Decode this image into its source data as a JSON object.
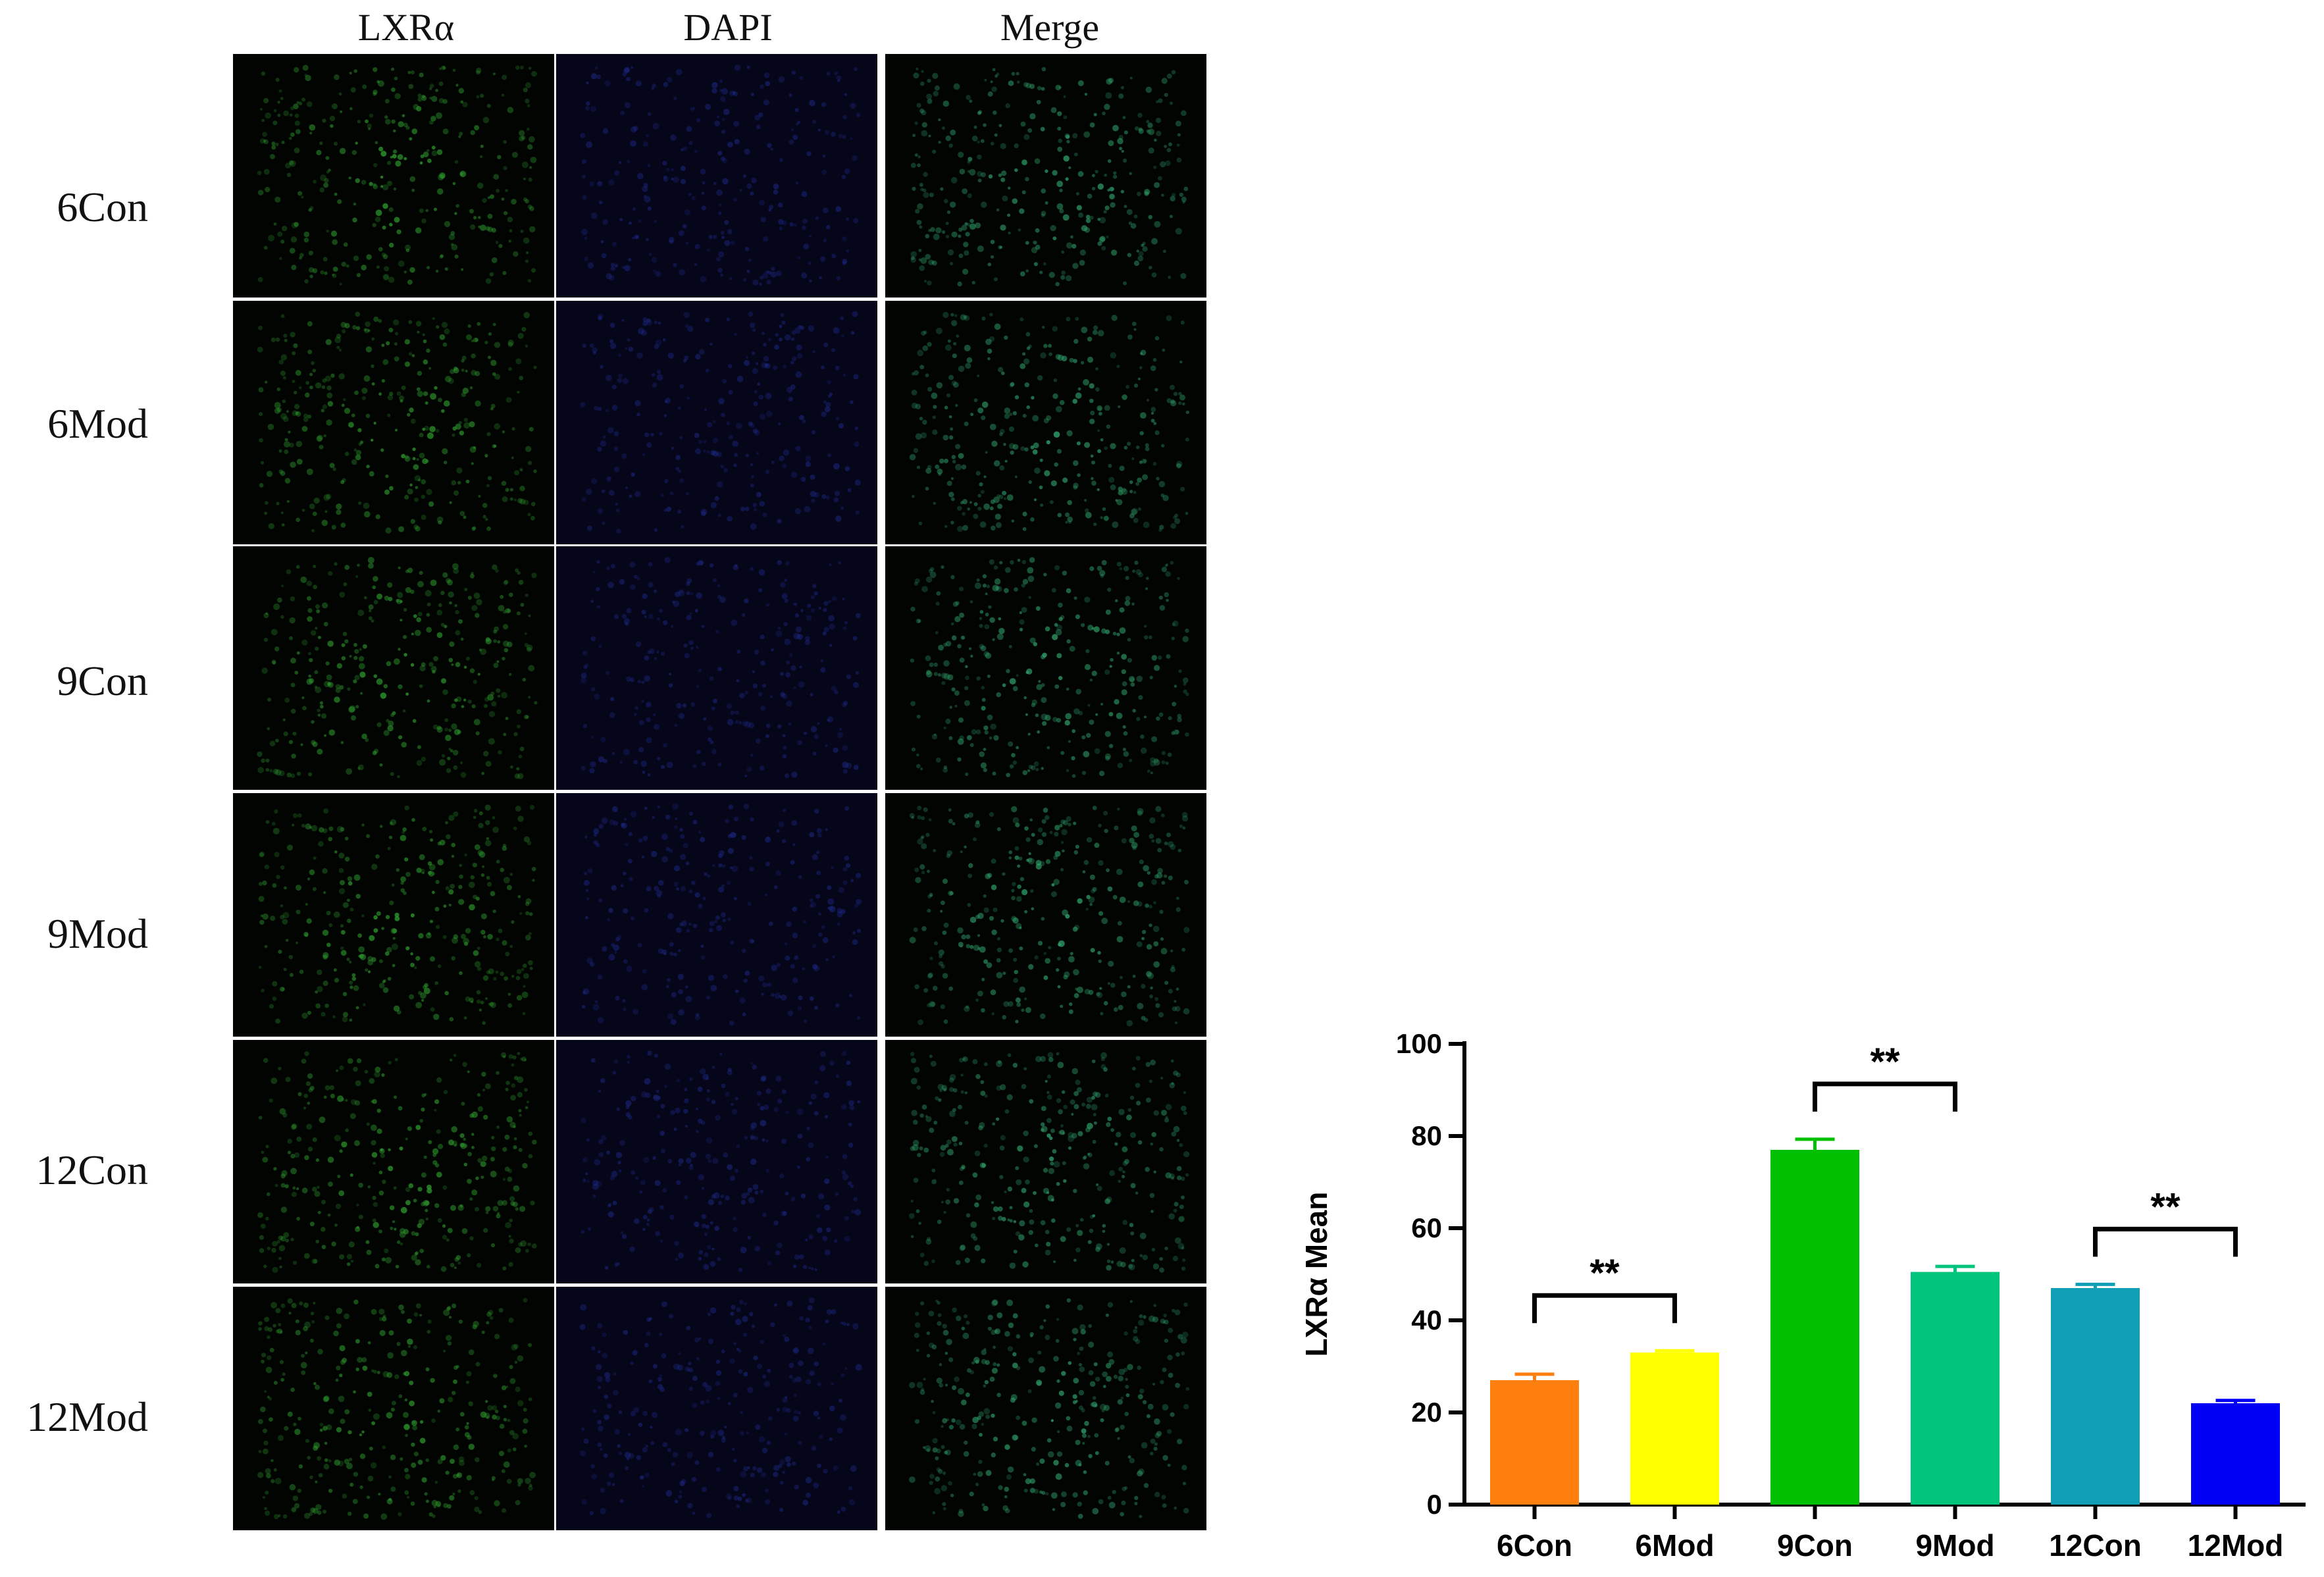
{
  "figure": {
    "column_headers": [
      "LXRα",
      "DAPI",
      "Merge"
    ],
    "row_labels": [
      "6Con",
      "6Mod",
      "9Con",
      "9Mod",
      "12Con",
      "12Mod"
    ],
    "channel_colors": {
      "LXRα": "#2e9a2e",
      "DAPI": "#1f2a8c",
      "Merge": "#2fa06a"
    }
  },
  "chart_data": {
    "type": "bar",
    "categories": [
      "6Con",
      "6Mod",
      "9Con",
      "9Mod",
      "12Con",
      "12Mod"
    ],
    "values": [
      27,
      33,
      77,
      50.5,
      47,
      22
    ],
    "errors": [
      1.3,
      0.4,
      2.3,
      1.2,
      0.8,
      0.6
    ],
    "colors": [
      "#ff7f0e",
      "#ffff00",
      "#00c000",
      "#00c47c",
      "#119fb8",
      "#0000f5"
    ],
    "title": "",
    "xlabel": "",
    "ylabel": "LXRα Mean",
    "ylim": [
      0,
      100
    ],
    "yticks": [
      0,
      20,
      40,
      60,
      80,
      100
    ],
    "significance": [
      {
        "from": "6Con",
        "to": "6Mod",
        "label": "**"
      },
      {
        "from": "9Con",
        "to": "9Mod",
        "label": "**"
      },
      {
        "from": "12Con",
        "to": "12Mod",
        "label": "**"
      }
    ]
  }
}
